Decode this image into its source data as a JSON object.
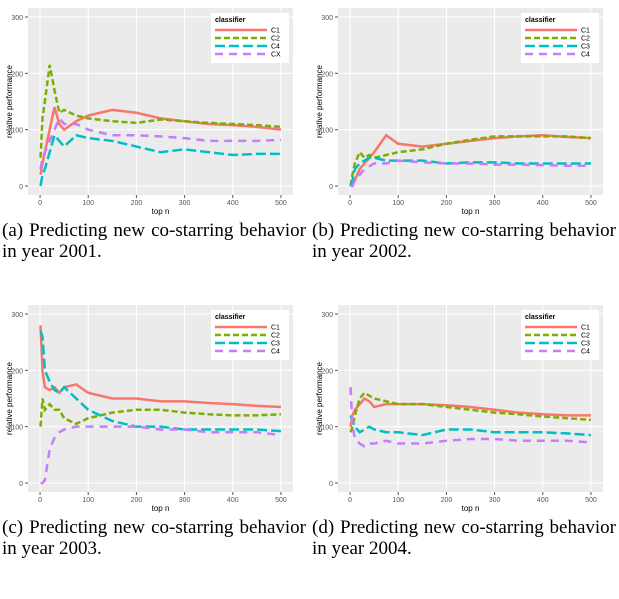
{
  "chart_data": [
    {
      "type": "line",
      "caption": "(a) Predicting new co-starring behavior in year 2001.",
      "xlabel": "top n",
      "ylabel": "relative performance",
      "legend_title": "classifier",
      "legend": "top-right",
      "grid": true,
      "xlim": [
        -25,
        525
      ],
      "xticks": [
        0,
        100,
        200,
        300,
        400,
        500
      ],
      "ylim": [
        -16,
        316
      ],
      "yticks": [
        0,
        100,
        200,
        300
      ],
      "x": [
        1,
        5,
        10,
        20,
        30,
        40,
        50,
        75,
        100,
        150,
        200,
        250,
        300,
        350,
        400,
        450,
        500
      ],
      "series": [
        {
          "name": "C1",
          "color": "#f8766d",
          "dash": "solid",
          "values": [
            20,
            40,
            60,
            100,
            140,
            110,
            100,
            115,
            125,
            135,
            130,
            120,
            115,
            110,
            108,
            105,
            100
          ]
        },
        {
          "name": "C2",
          "color": "#7cae00",
          "dash": "dotted",
          "values": [
            50,
            120,
            150,
            215,
            170,
            130,
            135,
            125,
            120,
            115,
            112,
            118,
            115,
            112,
            110,
            108,
            105
          ]
        },
        {
          "name": "C4",
          "color": "#00bfc4",
          "dash": "longdash",
          "values": [
            0,
            20,
            30,
            60,
            90,
            80,
            70,
            90,
            85,
            80,
            70,
            60,
            65,
            60,
            55,
            57,
            57
          ]
        },
        {
          "name": "CX",
          "color": "#c77cff",
          "dash": "dashed",
          "values": [
            30,
            50,
            60,
            80,
            100,
            120,
            110,
            110,
            100,
            90,
            90,
            88,
            85,
            80,
            80,
            80,
            82
          ]
        }
      ]
    },
    {
      "type": "line",
      "caption": "(b) Predicting new co-starring behavior in year 2002.",
      "xlabel": "top n",
      "ylabel": "relative performance",
      "legend_title": "classifier",
      "legend": "top-right",
      "grid": true,
      "xlim": [
        -25,
        525
      ],
      "xticks": [
        0,
        100,
        200,
        300,
        400,
        500
      ],
      "ylim": [
        -16,
        316
      ],
      "yticks": [
        0,
        100,
        200,
        300
      ],
      "x": [
        1,
        5,
        10,
        20,
        30,
        40,
        50,
        75,
        100,
        150,
        200,
        250,
        300,
        350,
        400,
        450,
        500
      ],
      "series": [
        {
          "name": "C1",
          "color": "#f8766d",
          "dash": "solid",
          "values": [
            0,
            5,
            10,
            30,
            40,
            50,
            60,
            90,
            75,
            70,
            75,
            80,
            85,
            88,
            90,
            87,
            85
          ]
        },
        {
          "name": "C2",
          "color": "#7cae00",
          "dash": "dotted",
          "values": [
            0,
            20,
            40,
            60,
            50,
            55,
            50,
            55,
            60,
            65,
            75,
            82,
            88,
            88,
            88,
            88,
            85
          ]
        },
        {
          "name": "C3",
          "color": "#00bfc4",
          "dash": "longdash",
          "values": [
            0,
            10,
            30,
            40,
            45,
            50,
            50,
            45,
            45,
            45,
            40,
            42,
            42,
            40,
            40,
            40,
            40
          ]
        },
        {
          "name": "C4",
          "color": "#c77cff",
          "dash": "dashed",
          "values": [
            0,
            0,
            10,
            20,
            30,
            35,
            40,
            40,
            45,
            42,
            40,
            40,
            38,
            38,
            37,
            36,
            36
          ]
        }
      ]
    },
    {
      "type": "line",
      "caption": "(c) Predicting new co-starring behavior in year 2003.",
      "xlabel": "top n",
      "ylabel": "relative performance",
      "legend_title": "classifier",
      "legend": "top-right",
      "grid": true,
      "xlim": [
        -25,
        525
      ],
      "xticks": [
        0,
        100,
        200,
        300,
        400,
        500
      ],
      "ylim": [
        -16,
        316
      ],
      "yticks": [
        0,
        100,
        200,
        300
      ],
      "x": [
        1,
        5,
        10,
        20,
        30,
        40,
        50,
        75,
        100,
        150,
        200,
        250,
        300,
        350,
        400,
        450,
        500
      ],
      "series": [
        {
          "name": "C1",
          "color": "#f8766d",
          "dash": "solid",
          "values": [
            280,
            200,
            170,
            165,
            170,
            160,
            170,
            175,
            160,
            150,
            150,
            145,
            145,
            142,
            140,
            137,
            135
          ]
        },
        {
          "name": "C2",
          "color": "#7cae00",
          "dash": "dotted",
          "values": [
            100,
            150,
            130,
            140,
            130,
            130,
            115,
            105,
            115,
            125,
            130,
            130,
            125,
            122,
            120,
            120,
            122
          ]
        },
        {
          "name": "C3",
          "color": "#00bfc4",
          "dash": "longdash",
          "values": [
            270,
            260,
            200,
            180,
            165,
            160,
            170,
            150,
            130,
            110,
            100,
            100,
            95,
            95,
            95,
            95,
            92
          ]
        },
        {
          "name": "C4",
          "color": "#c77cff",
          "dash": "dashed",
          "values": [
            0,
            0,
            5,
            60,
            80,
            90,
            95,
            100,
            100,
            100,
            100,
            95,
            95,
            90,
            90,
            90,
            85
          ]
        }
      ]
    },
    {
      "type": "line",
      "caption": "(d) Predicting new co-starring behavior in year 2004.",
      "xlabel": "top n",
      "ylabel": "relative performance",
      "legend_title": "classifier",
      "legend": "top-right",
      "grid": true,
      "xlim": [
        -25,
        525
      ],
      "xticks": [
        0,
        100,
        200,
        300,
        400,
        500
      ],
      "ylim": [
        -16,
        316
      ],
      "yticks": [
        0,
        100,
        200,
        300
      ],
      "x": [
        1,
        5,
        10,
        20,
        30,
        40,
        50,
        75,
        100,
        150,
        200,
        250,
        300,
        350,
        400,
        450,
        500
      ],
      "series": [
        {
          "name": "C1",
          "color": "#f8766d",
          "dash": "solid",
          "values": [
            100,
            120,
            130,
            140,
            150,
            145,
            135,
            140,
            140,
            140,
            138,
            135,
            130,
            125,
            122,
            120,
            120
          ]
        },
        {
          "name": "C2",
          "color": "#7cae00",
          "dash": "dotted",
          "values": [
            90,
            100,
            120,
            150,
            160,
            155,
            150,
            145,
            140,
            140,
            135,
            130,
            125,
            122,
            118,
            115,
            112
          ]
        },
        {
          "name": "C3",
          "color": "#00bfc4",
          "dash": "longdash",
          "values": [
            120,
            110,
            100,
            90,
            95,
            100,
            95,
            90,
            90,
            85,
            95,
            95,
            90,
            90,
            90,
            88,
            85
          ]
        },
        {
          "name": "C4",
          "color": "#c77cff",
          "dash": "dashed",
          "values": [
            170,
            100,
            80,
            70,
            65,
            70,
            70,
            75,
            70,
            70,
            75,
            78,
            78,
            75,
            75,
            75,
            72
          ]
        }
      ]
    }
  ]
}
